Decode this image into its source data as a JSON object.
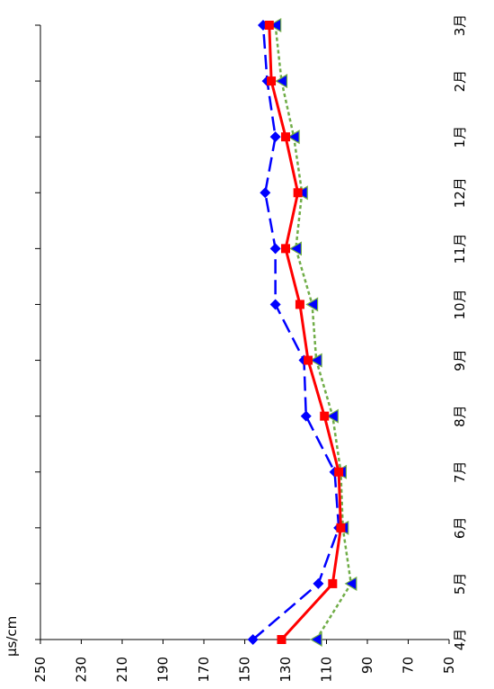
{
  "chart_data": {
    "type": "line",
    "orientation": "rotated-90-clockwise",
    "title": "",
    "xlabel": "",
    "ylabel": "μs/cm",
    "ylim": [
      50,
      250
    ],
    "y_ticks": [
      250,
      230,
      210,
      190,
      170,
      150,
      130,
      110,
      90,
      70,
      50
    ],
    "categories": [
      "4月",
      "5月",
      "6月",
      "7月",
      "8月",
      "9月",
      "10月",
      "11月",
      "12月",
      "1月",
      "2月",
      "3月"
    ],
    "grid": false,
    "legend": "none",
    "series": [
      {
        "key": "dashed-blue-diamond",
        "color": "#0000ff",
        "line_style": "long-dash",
        "marker": "diamond",
        "values": [
          146,
          114,
          104,
          106,
          120,
          121,
          135,
          135,
          140,
          135,
          139,
          141
        ]
      },
      {
        "key": "solid-red-square",
        "color": "#ff0000",
        "line_style": "solid",
        "marker": "square",
        "values": [
          132,
          107,
          103,
          104,
          111,
          119,
          123,
          130,
          124,
          130,
          137,
          138
        ]
      },
      {
        "key": "dotted-green-triangle",
        "color": "#70ad47",
        "marker_fill": "#0000ff",
        "line_style": "dotted",
        "marker": "triangle",
        "values": [
          115,
          98,
          102,
          103,
          107,
          115,
          117,
          125,
          122,
          126,
          132,
          135
        ]
      }
    ]
  }
}
